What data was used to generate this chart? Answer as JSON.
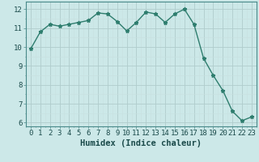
{
  "x": [
    0,
    1,
    2,
    3,
    4,
    5,
    6,
    7,
    8,
    9,
    10,
    11,
    12,
    13,
    14,
    15,
    16,
    17,
    18,
    19,
    20,
    21,
    22,
    23
  ],
  "y": [
    9.9,
    10.8,
    11.2,
    11.1,
    11.2,
    11.3,
    11.4,
    11.8,
    11.75,
    11.35,
    10.85,
    11.3,
    11.85,
    11.75,
    11.3,
    11.75,
    12.0,
    11.2,
    9.4,
    8.5,
    7.7,
    6.6,
    6.1,
    6.3
  ],
  "line_color": "#2e7d6e",
  "marker": "*",
  "marker_size": 3.5,
  "bg_color": "#cce8e8",
  "grid_major_color": "#b0cccc",
  "grid_minor_color": "#c8e0e0",
  "xlabel": "Humidex (Indice chaleur)",
  "xlim": [
    -0.5,
    23.5
  ],
  "ylim": [
    5.8,
    12.4
  ],
  "yticks": [
    6,
    7,
    8,
    9,
    10,
    11,
    12
  ],
  "xticks": [
    0,
    1,
    2,
    3,
    4,
    5,
    6,
    7,
    8,
    9,
    10,
    11,
    12,
    13,
    14,
    15,
    16,
    17,
    18,
    19,
    20,
    21,
    22,
    23
  ],
  "tick_fontsize": 6.5,
  "label_fontsize": 7.5,
  "line_width": 1.0
}
